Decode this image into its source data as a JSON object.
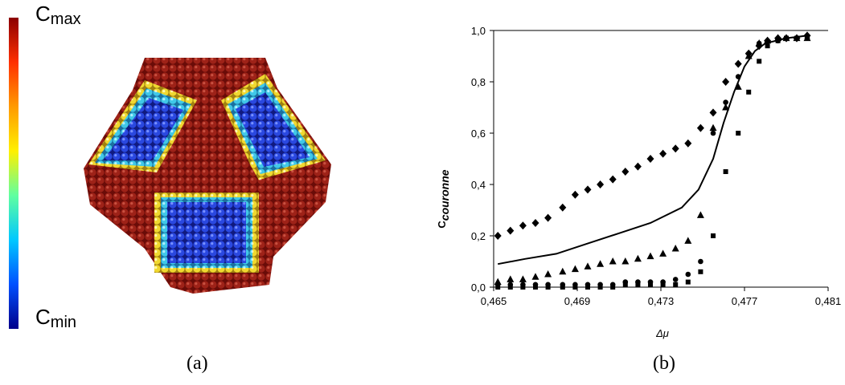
{
  "panel_a": {
    "caption": "(a)",
    "colorbar": {
      "max_label": "C",
      "max_sub": "max",
      "min_label": "C",
      "min_sub": "min",
      "colors": [
        "#8b0000",
        "#ff3000",
        "#ff9a00",
        "#fff000",
        "#60ffa0",
        "#00c8ff",
        "#0050ff",
        "#00008b"
      ]
    },
    "particle_colors": {
      "surface": "#8e1a14",
      "edge_ring_outer": "#f0d020",
      "edge_ring_mid": "#40d0e0",
      "facet_core": "#2a40d8"
    }
  },
  "panel_b": {
    "caption": "(b)"
  },
  "chart_data": {
    "type": "scatter",
    "title": "",
    "xlabel": "Δμ",
    "ylabel": "C",
    "ylabel_sub": "couronne",
    "xlim": [
      0.465,
      0.481
    ],
    "ylim": [
      0.0,
      1.0
    ],
    "x_ticks": [
      "0,465",
      "0,469",
      "0,473",
      "0,477",
      "0,481"
    ],
    "x_tick_values": [
      0.465,
      0.469,
      0.473,
      0.477,
      0.481
    ],
    "y_ticks": [
      "0,0",
      "0,2",
      "0,4",
      "0,6",
      "0,8",
      "1,0"
    ],
    "y_tick_values": [
      0.0,
      0.2,
      0.4,
      0.6,
      0.8,
      1.0
    ],
    "grid": false,
    "series": [
      {
        "marker": "diamond",
        "x": [
          0.4652,
          0.4658,
          0.4664,
          0.467,
          0.4676,
          0.4683,
          0.4689,
          0.4695,
          0.4701,
          0.4707,
          0.4713,
          0.4719,
          0.4725,
          0.4731,
          0.4737,
          0.4743,
          0.4749,
          0.4755,
          0.4761,
          0.4767,
          0.4772,
          0.4777,
          0.4781,
          0.4786,
          0.479,
          0.4795,
          0.48
        ],
        "y": [
          0.2,
          0.22,
          0.24,
          0.25,
          0.27,
          0.31,
          0.36,
          0.38,
          0.4,
          0.42,
          0.45,
          0.47,
          0.5,
          0.52,
          0.54,
          0.56,
          0.62,
          0.68,
          0.8,
          0.87,
          0.91,
          0.94,
          0.96,
          0.97,
          0.97,
          0.97,
          0.98
        ]
      },
      {
        "marker": "triangle",
        "x": [
          0.4652,
          0.4658,
          0.4664,
          0.467,
          0.4676,
          0.4683,
          0.4689,
          0.4695,
          0.4701,
          0.4707,
          0.4713,
          0.4719,
          0.4725,
          0.4731,
          0.4737,
          0.4743,
          0.4749,
          0.4755,
          0.4761,
          0.4767,
          0.4772,
          0.4777,
          0.4781,
          0.4786,
          0.479,
          0.4795,
          0.48
        ],
        "y": [
          0.02,
          0.03,
          0.03,
          0.04,
          0.05,
          0.06,
          0.07,
          0.08,
          0.09,
          0.1,
          0.1,
          0.11,
          0.12,
          0.13,
          0.15,
          0.18,
          0.28,
          0.62,
          0.7,
          0.78,
          0.9,
          0.95,
          0.96,
          0.97,
          0.97,
          0.97,
          0.97
        ]
      },
      {
        "marker": "circle",
        "x": [
          0.4652,
          0.4658,
          0.4664,
          0.467,
          0.4676,
          0.4683,
          0.4689,
          0.4695,
          0.4701,
          0.4707,
          0.4713,
          0.4719,
          0.4725,
          0.4731,
          0.4737,
          0.4743,
          0.4749,
          0.4755,
          0.4761,
          0.4767,
          0.4772,
          0.4777,
          0.4781,
          0.4786,
          0.479,
          0.4795,
          0.48
        ],
        "y": [
          0.01,
          0.01,
          0.01,
          0.01,
          0.01,
          0.01,
          0.01,
          0.01,
          0.01,
          0.01,
          0.02,
          0.02,
          0.02,
          0.02,
          0.03,
          0.05,
          0.1,
          0.6,
          0.72,
          0.82,
          0.91,
          0.95,
          0.96,
          0.96,
          0.97,
          0.97,
          0.97
        ]
      },
      {
        "marker": "square",
        "x": [
          0.4652,
          0.4658,
          0.4664,
          0.467,
          0.4676,
          0.4683,
          0.4689,
          0.4695,
          0.4701,
          0.4707,
          0.4713,
          0.4719,
          0.4725,
          0.4731,
          0.4737,
          0.4743,
          0.4749,
          0.4755,
          0.4761,
          0.4767,
          0.4772,
          0.4777,
          0.4781,
          0.4786,
          0.479,
          0.4795,
          0.48
        ],
        "y": [
          0.0,
          0.0,
          0.0,
          0.0,
          0.0,
          0.0,
          0.0,
          0.0,
          0.0,
          0.0,
          0.01,
          0.01,
          0.01,
          0.01,
          0.01,
          0.02,
          0.06,
          0.2,
          0.45,
          0.6,
          0.76,
          0.88,
          0.94,
          0.96,
          0.97,
          0.97,
          0.97
        ]
      },
      {
        "marker": "line",
        "x": [
          0.4652,
          0.4665,
          0.468,
          0.4695,
          0.471,
          0.4725,
          0.474,
          0.4748,
          0.4755,
          0.476,
          0.4765,
          0.477,
          0.4775,
          0.478,
          0.479,
          0.48
        ],
        "y": [
          0.09,
          0.11,
          0.13,
          0.17,
          0.21,
          0.25,
          0.31,
          0.38,
          0.5,
          0.64,
          0.76,
          0.86,
          0.92,
          0.95,
          0.97,
          0.98
        ]
      }
    ]
  }
}
